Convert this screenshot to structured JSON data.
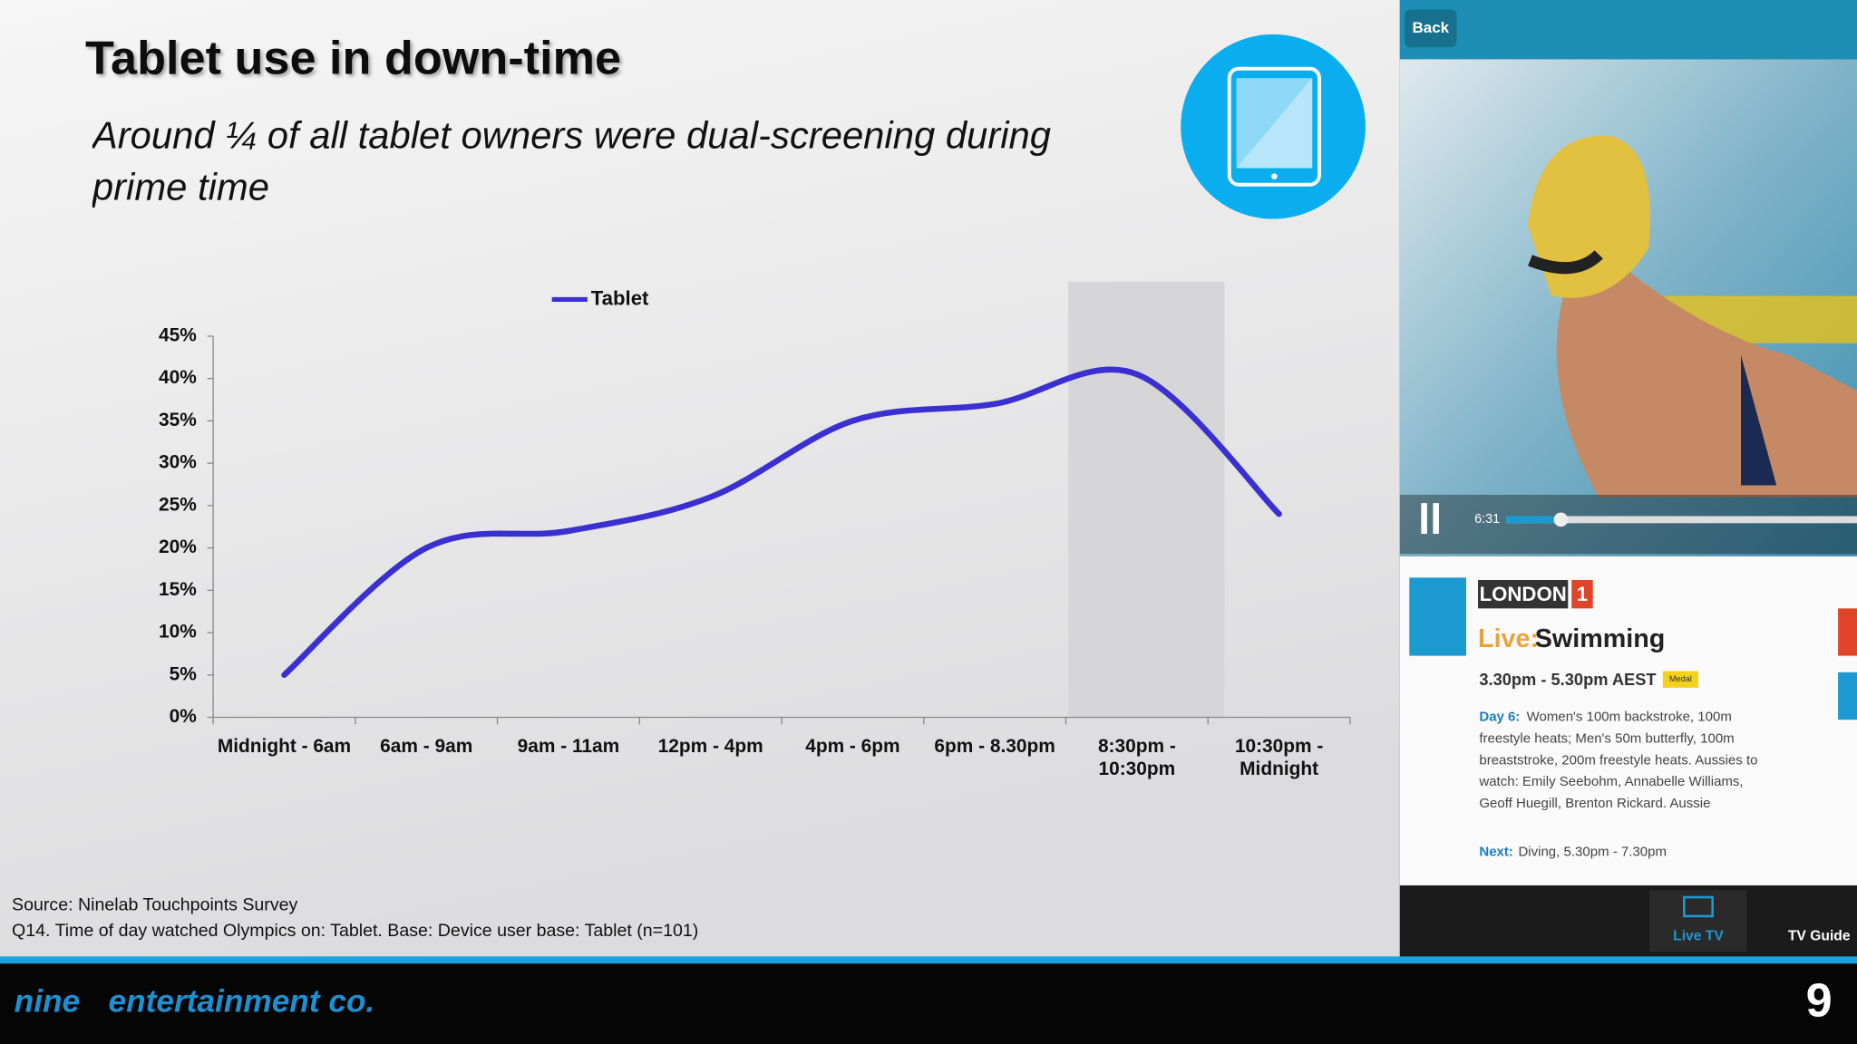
{
  "title": "Tablet use in down-time",
  "subtitle": "Around ¼ of all tablet owners were dual-screening during prime time",
  "source": "Source: Ninelab Touchpoints Survey",
  "note": "Q14. Time of day watched Olympics on: Tablet. Base: Device user base: Tablet (n=101)",
  "footer": {
    "logo_a": "nine",
    "logo_b": "entertainment co.",
    "logo_right": "9"
  },
  "phone": {
    "back": "Back",
    "time": "6:31",
    "channel": "LONDON",
    "channel_num": "1",
    "live": "Live:",
    "show": "Swimming",
    "times": "3.30pm - 5.30pm AEST",
    "badge": "Medal",
    "day": "Day 6:",
    "desc": [
      "Women's 100m backstroke, 100m",
      "freestyle heats; Men's 50m butterfly, 100m",
      "breaststroke, 200m freestyle heats. Aussies to",
      "watch: Emily Seebohm, Annabelle Williams,",
      "Geoff Huegill, Brenton Rickard. Aussie"
    ],
    "next": "Next:",
    "next_show": "Diving, 5.30pm - 7.30pm",
    "tab_live": "Live TV",
    "tab_guide": "TV Guide"
  },
  "chart_data": {
    "type": "line",
    "categories": [
      "Midnight - 6am",
      "6am - 9am",
      "9am - 11am",
      "12pm - 4pm",
      "4pm - 6pm",
      "6pm - 8.30pm",
      "8:30pm -\n10:30pm",
      "10:30pm -\nMidnight"
    ],
    "series": [
      {
        "name": "Tablet",
        "color": "#3a2fd0",
        "values": [
          5,
          20,
          22,
          26,
          35,
          37,
          40.5,
          24
        ]
      }
    ],
    "ylim": [
      0,
      45
    ],
    "yticks": [
      {
        "value": 0,
        "label": "0%"
      },
      {
        "value": 5,
        "label": "5%"
      },
      {
        "value": 10,
        "label": "10%"
      },
      {
        "value": 15,
        "label": "15%"
      },
      {
        "value": 20,
        "label": "20%"
      },
      {
        "value": 25,
        "label": "25%"
      },
      {
        "value": 30,
        "label": "30%"
      },
      {
        "value": 35,
        "label": "35%"
      },
      {
        "value": 40,
        "label": "40%"
      },
      {
        "value": 45,
        "label": "45%"
      }
    ],
    "highlight_index": 6,
    "legend": "top",
    "smooth": true
  }
}
